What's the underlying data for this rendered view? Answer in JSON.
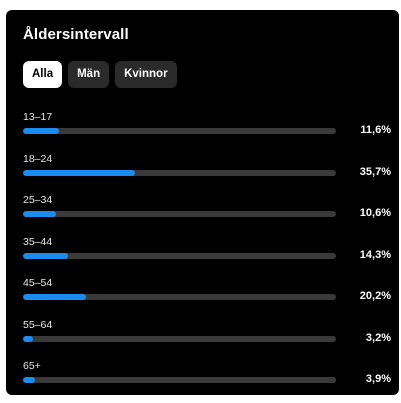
{
  "header": {
    "title": "Åldersintervall"
  },
  "tabs": [
    {
      "label": "Alla",
      "active": true
    },
    {
      "label": "Män",
      "active": false
    },
    {
      "label": "Kvinnor",
      "active": false
    }
  ],
  "colors": {
    "accent": "#1a8cf0",
    "track": "#3a3a3a",
    "background": "#000000"
  },
  "age_groups": [
    {
      "label": "13–17",
      "percent_text": "11,6%",
      "percent": 11.6
    },
    {
      "label": "18–24",
      "percent_text": "35,7%",
      "percent": 35.7
    },
    {
      "label": "25–34",
      "percent_text": "10,6%",
      "percent": 10.6
    },
    {
      "label": "35–44",
      "percent_text": "14,3%",
      "percent": 14.3
    },
    {
      "label": "45–54",
      "percent_text": "20,2%",
      "percent": 20.2
    },
    {
      "label": "55–64",
      "percent_text": "3,2%",
      "percent": 3.2
    },
    {
      "label": "65+",
      "percent_text": "3,9%",
      "percent": 3.9
    }
  ]
}
